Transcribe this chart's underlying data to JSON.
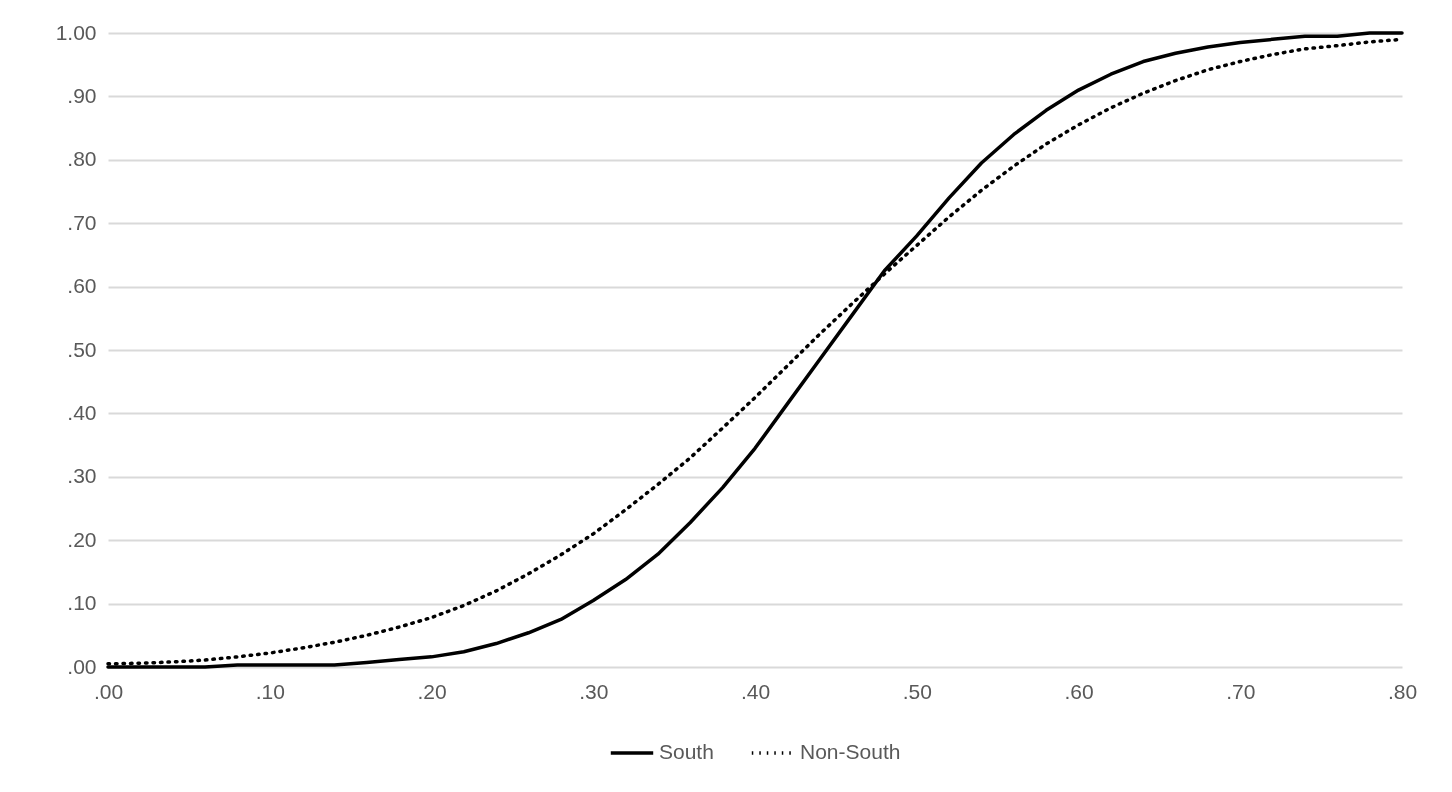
{
  "chart_data": {
    "type": "line",
    "x": [
      0,
      0.02,
      0.04,
      0.06,
      0.08,
      0.1,
      0.12,
      0.14,
      0.16,
      0.18,
      0.2,
      0.22,
      0.24,
      0.26,
      0.28,
      0.3,
      0.32,
      0.34,
      0.36,
      0.38,
      0.4,
      0.42,
      0.44,
      0.46,
      0.48,
      0.5,
      0.52,
      0.54,
      0.56,
      0.58,
      0.6,
      0.62,
      0.64,
      0.66,
      0.68,
      0.7,
      0.72,
      0.74,
      0.76,
      0.78,
      0.8
    ],
    "series": [
      {
        "name": "South",
        "color": "#000000",
        "line_style": "solid",
        "values": [
          0,
          0,
          0,
          0,
          0.003,
          0.003,
          0.003,
          0.003,
          0.007,
          0.012,
          0.016,
          0.024,
          0.037,
          0.054,
          0.075,
          0.105,
          0.138,
          0.178,
          0.228,
          0.283,
          0.345,
          0.415,
          0.485,
          0.555,
          0.625,
          0.68,
          0.74,
          0.795,
          0.84,
          0.878,
          0.91,
          0.935,
          0.955,
          0.968,
          0.978,
          0.985,
          0.99,
          0.995,
          0.995,
          1.0,
          1.0
        ]
      },
      {
        "name": "Non-South",
        "color": "#000000",
        "line_style": "dotted",
        "values": [
          0.005,
          0.006,
          0.008,
          0.011,
          0.016,
          0.022,
          0.03,
          0.039,
          0.05,
          0.063,
          0.078,
          0.097,
          0.12,
          0.147,
          0.177,
          0.21,
          0.248,
          0.288,
          0.33,
          0.377,
          0.425,
          0.475,
          0.525,
          0.573,
          0.62,
          0.665,
          0.71,
          0.752,
          0.79,
          0.825,
          0.855,
          0.882,
          0.905,
          0.925,
          0.942,
          0.955,
          0.966,
          0.975,
          0.98,
          0.986,
          0.99
        ]
      }
    ],
    "xlim": [
      0,
      0.8
    ],
    "xticks": [
      {
        "value": 0,
        "label": ".00"
      },
      {
        "value": 0.1,
        "label": ".10"
      },
      {
        "value": 0.2,
        "label": ".20"
      },
      {
        "value": 0.3,
        "label": ".30"
      },
      {
        "value": 0.4,
        "label": ".40"
      },
      {
        "value": 0.5,
        "label": ".50"
      },
      {
        "value": 0.6,
        "label": ".60"
      },
      {
        "value": 0.7,
        "label": ".70"
      },
      {
        "value": 0.8,
        "label": ".80"
      }
    ],
    "ylim": [
      0,
      1
    ],
    "yticks": [
      {
        "value": 0,
        "label": ".00"
      },
      {
        "value": 0.1,
        "label": ".10"
      },
      {
        "value": 0.2,
        "label": ".20"
      },
      {
        "value": 0.3,
        "label": ".30"
      },
      {
        "value": 0.4,
        "label": ".40"
      },
      {
        "value": 0.5,
        "label": ".50"
      },
      {
        "value": 0.6,
        "label": ".60"
      },
      {
        "value": 0.7,
        "label": ".70"
      },
      {
        "value": 0.8,
        "label": ".80"
      },
      {
        "value": 0.9,
        "label": ".90"
      },
      {
        "value": 1,
        "label": "1.00"
      }
    ],
    "grid": "y",
    "legend": "bottom"
  }
}
